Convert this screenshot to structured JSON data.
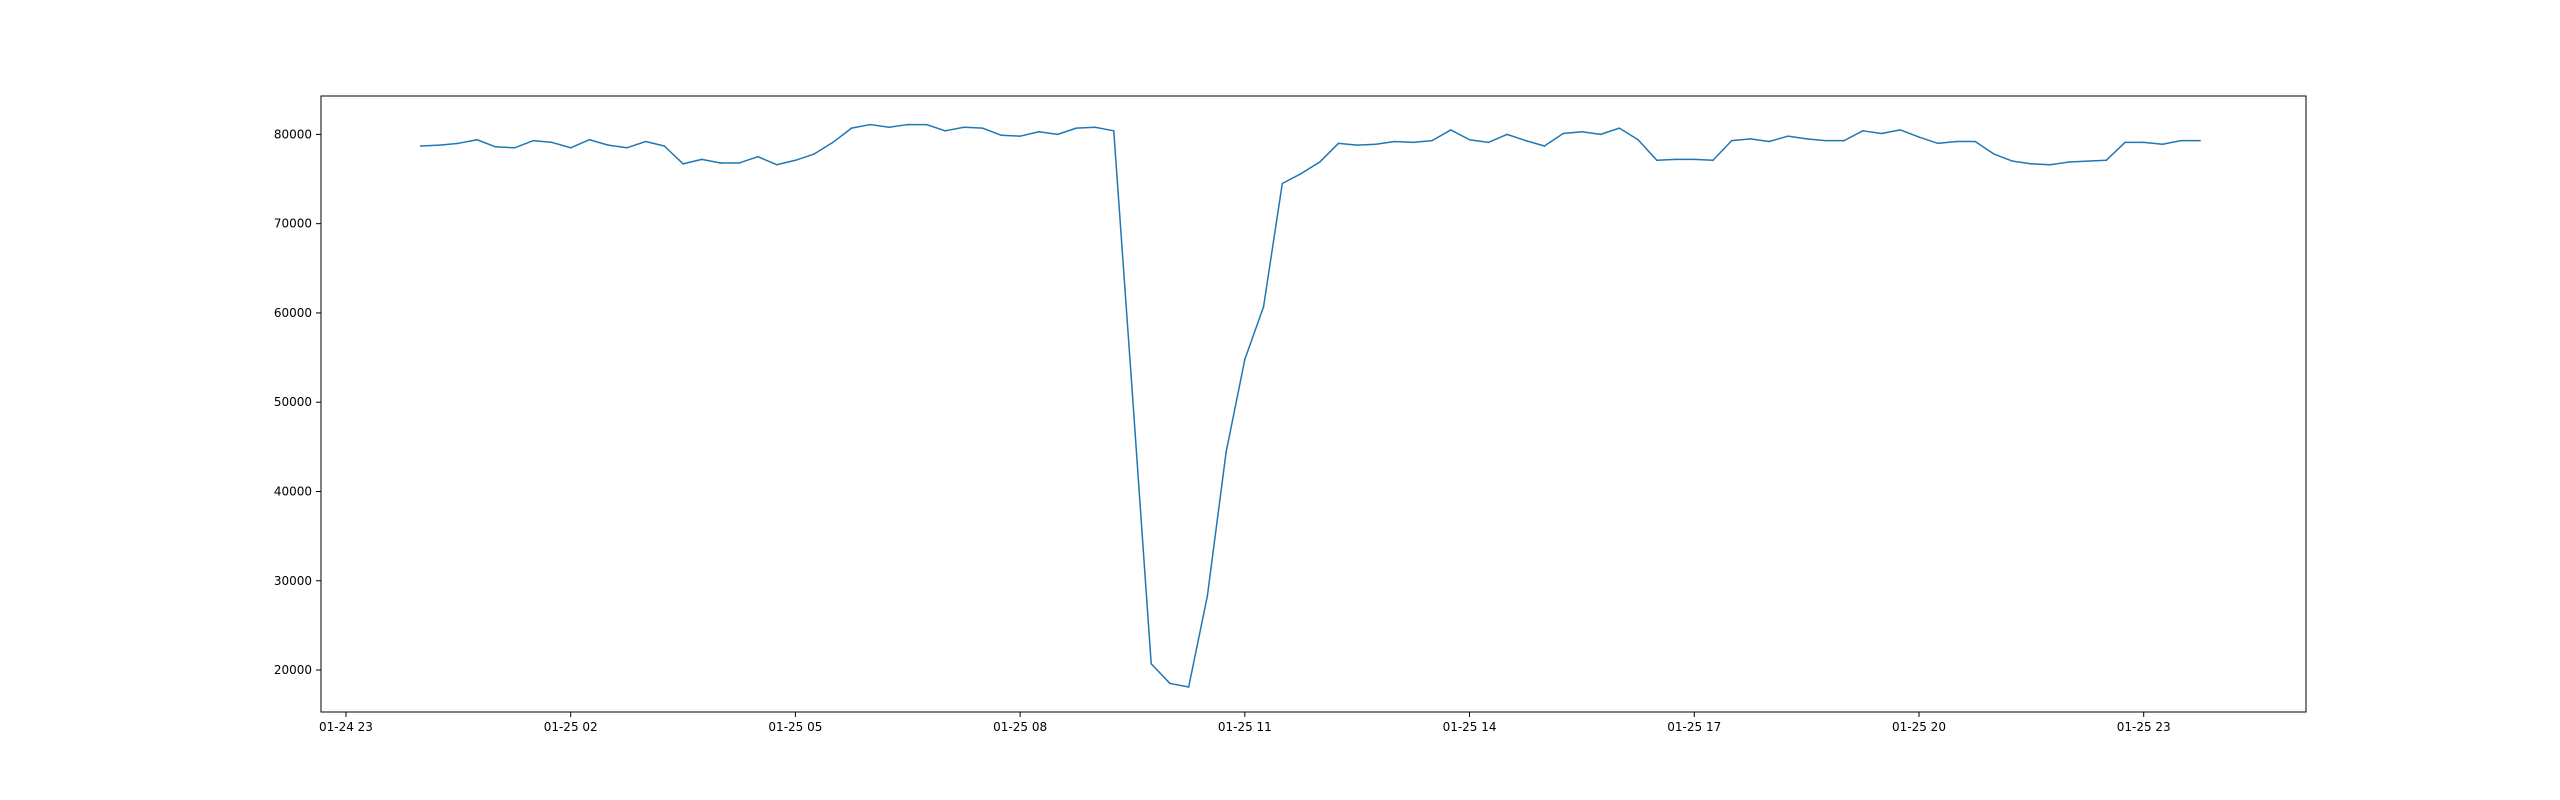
{
  "chart_data": {
    "type": "line",
    "title": "",
    "xlabel": "",
    "ylabel": "",
    "grid": false,
    "legend": false,
    "xlim": [
      "2025-01-24 22:40",
      "2025-01-26 01:10"
    ],
    "ylim": [
      15300,
      84300
    ],
    "x_ticks": [
      {
        "t": "2025-01-24 23:00",
        "label": "01-24 23"
      },
      {
        "t": "2025-01-25 02:00",
        "label": "01-25 02"
      },
      {
        "t": "2025-01-25 05:00",
        "label": "01-25 05"
      },
      {
        "t": "2025-01-25 08:00",
        "label": "01-25 08"
      },
      {
        "t": "2025-01-25 11:00",
        "label": "01-25 11"
      },
      {
        "t": "2025-01-25 14:00",
        "label": "01-25 14"
      },
      {
        "t": "2025-01-25 17:00",
        "label": "01-25 17"
      },
      {
        "t": "2025-01-25 20:00",
        "label": "01-25 20"
      },
      {
        "t": "2025-01-25 23:00",
        "label": "01-25 23"
      }
    ],
    "y_ticks": [
      {
        "v": 20000,
        "label": "20000"
      },
      {
        "v": 30000,
        "label": "30000"
      },
      {
        "v": 40000,
        "label": "40000"
      },
      {
        "v": 50000,
        "label": "50000"
      },
      {
        "v": 60000,
        "label": "60000"
      },
      {
        "v": 70000,
        "label": "70000"
      },
      {
        "v": 80000,
        "label": "80000"
      }
    ],
    "series": [
      {
        "color": "#1f77b4",
        "points": [
          [
            "2025-01-25 00:00",
            78700
          ],
          [
            "2025-01-25 00:15",
            78800
          ],
          [
            "2025-01-25 00:30",
            79000
          ],
          [
            "2025-01-25 00:45",
            79400
          ],
          [
            "2025-01-25 01:00",
            78600
          ],
          [
            "2025-01-25 01:15",
            78500
          ],
          [
            "2025-01-25 01:30",
            79300
          ],
          [
            "2025-01-25 01:45",
            79100
          ],
          [
            "2025-01-25 02:00",
            78500
          ],
          [
            "2025-01-25 02:15",
            79400
          ],
          [
            "2025-01-25 02:30",
            78800
          ],
          [
            "2025-01-25 02:45",
            78500
          ],
          [
            "2025-01-25 03:00",
            79200
          ],
          [
            "2025-01-25 03:15",
            78700
          ],
          [
            "2025-01-25 03:30",
            76700
          ],
          [
            "2025-01-25 03:45",
            77200
          ],
          [
            "2025-01-25 04:00",
            76800
          ],
          [
            "2025-01-25 04:15",
            76800
          ],
          [
            "2025-01-25 04:30",
            77500
          ],
          [
            "2025-01-25 04:45",
            76600
          ],
          [
            "2025-01-25 05:00",
            77100
          ],
          [
            "2025-01-25 05:15",
            77800
          ],
          [
            "2025-01-25 05:30",
            79100
          ],
          [
            "2025-01-25 05:45",
            80700
          ],
          [
            "2025-01-25 06:00",
            81100
          ],
          [
            "2025-01-25 06:15",
            80800
          ],
          [
            "2025-01-25 06:30",
            81100
          ],
          [
            "2025-01-25 06:45",
            81100
          ],
          [
            "2025-01-25 07:00",
            80400
          ],
          [
            "2025-01-25 07:15",
            80800
          ],
          [
            "2025-01-25 07:30",
            80700
          ],
          [
            "2025-01-25 07:45",
            79900
          ],
          [
            "2025-01-25 08:00",
            79800
          ],
          [
            "2025-01-25 08:15",
            80300
          ],
          [
            "2025-01-25 08:30",
            80000
          ],
          [
            "2025-01-25 08:45",
            80700
          ],
          [
            "2025-01-25 09:00",
            80800
          ],
          [
            "2025-01-25 09:15",
            80400
          ],
          [
            "2025-01-25 09:30",
            50800
          ],
          [
            "2025-01-25 09:45",
            20700
          ],
          [
            "2025-01-25 10:00",
            18500
          ],
          [
            "2025-01-25 10:15",
            18100
          ],
          [
            "2025-01-25 10:30",
            28300
          ],
          [
            "2025-01-25 10:45",
            44400
          ],
          [
            "2025-01-25 11:00",
            54800
          ],
          [
            "2025-01-25 11:15",
            60700
          ],
          [
            "2025-01-25 11:30",
            74500
          ],
          [
            "2025-01-25 11:45",
            75600
          ],
          [
            "2025-01-25 12:00",
            76900
          ],
          [
            "2025-01-25 12:15",
            79000
          ],
          [
            "2025-01-25 12:30",
            78800
          ],
          [
            "2025-01-25 12:45",
            78900
          ],
          [
            "2025-01-25 13:00",
            79200
          ],
          [
            "2025-01-25 13:15",
            79100
          ],
          [
            "2025-01-25 13:30",
            79300
          ],
          [
            "2025-01-25 13:45",
            80500
          ],
          [
            "2025-01-25 14:00",
            79400
          ],
          [
            "2025-01-25 14:15",
            79100
          ],
          [
            "2025-01-25 14:30",
            80000
          ],
          [
            "2025-01-25 14:45",
            79300
          ],
          [
            "2025-01-25 15:00",
            78700
          ],
          [
            "2025-01-25 15:15",
            80100
          ],
          [
            "2025-01-25 15:30",
            80300
          ],
          [
            "2025-01-25 15:45",
            80000
          ],
          [
            "2025-01-25 16:00",
            80700
          ],
          [
            "2025-01-25 16:15",
            79400
          ],
          [
            "2025-01-25 16:30",
            77100
          ],
          [
            "2025-01-25 16:45",
            77200
          ],
          [
            "2025-01-25 17:00",
            77200
          ],
          [
            "2025-01-25 17:15",
            77100
          ],
          [
            "2025-01-25 17:30",
            79300
          ],
          [
            "2025-01-25 17:45",
            79500
          ],
          [
            "2025-01-25 18:00",
            79200
          ],
          [
            "2025-01-25 18:15",
            79800
          ],
          [
            "2025-01-25 18:30",
            79500
          ],
          [
            "2025-01-25 18:45",
            79300
          ],
          [
            "2025-01-25 19:00",
            79300
          ],
          [
            "2025-01-25 19:15",
            80400
          ],
          [
            "2025-01-25 19:30",
            80100
          ],
          [
            "2025-01-25 19:45",
            80500
          ],
          [
            "2025-01-25 20:00",
            79700
          ],
          [
            "2025-01-25 20:15",
            79000
          ],
          [
            "2025-01-25 20:30",
            79200
          ],
          [
            "2025-01-25 20:45",
            79200
          ],
          [
            "2025-01-25 21:00",
            77800
          ],
          [
            "2025-01-25 21:15",
            77000
          ],
          [
            "2025-01-25 21:30",
            76700
          ],
          [
            "2025-01-25 21:45",
            76600
          ],
          [
            "2025-01-25 22:00",
            76900
          ],
          [
            "2025-01-25 22:15",
            77000
          ],
          [
            "2025-01-25 22:30",
            77100
          ],
          [
            "2025-01-25 22:45",
            79100
          ],
          [
            "2025-01-25 23:00",
            79100
          ],
          [
            "2025-01-25 23:15",
            78900
          ],
          [
            "2025-01-25 23:30",
            79300
          ],
          [
            "2025-01-25 23:45",
            79300
          ]
        ]
      }
    ]
  }
}
